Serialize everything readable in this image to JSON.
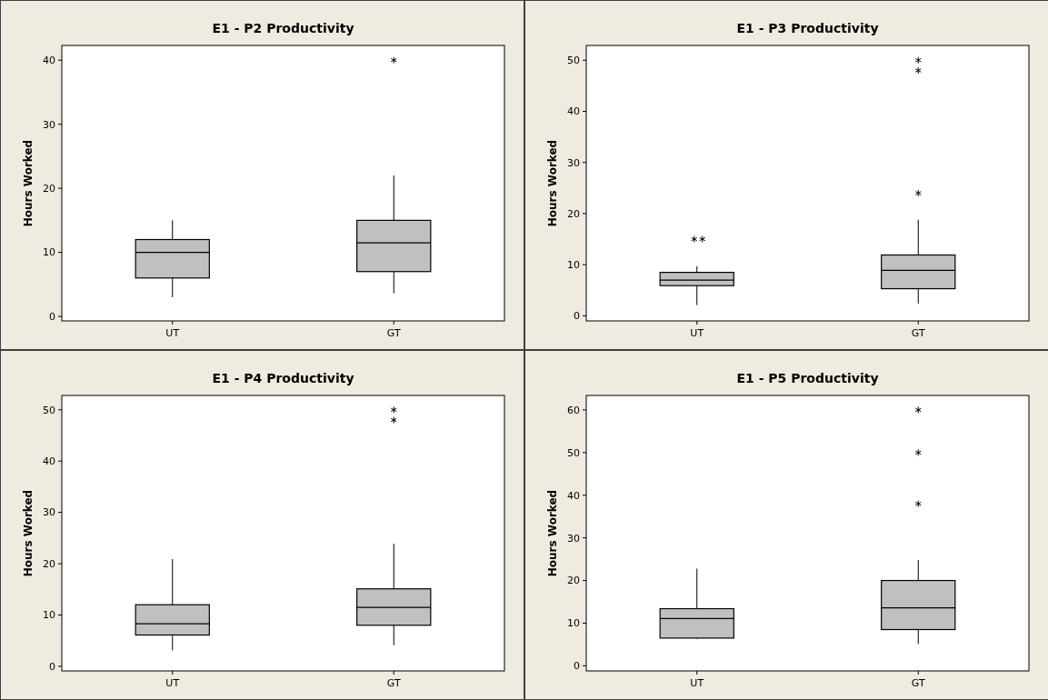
{
  "chart_data": [
    {
      "type": "box",
      "title": "E1 - P2 Productivity",
      "ylabel": "Hours Worked",
      "categories": [
        "UT",
        "GT"
      ],
      "ylim": [
        -0.7,
        42.3
      ],
      "yticks": [
        0,
        10,
        20,
        30,
        40
      ],
      "series": [
        {
          "color": "#c0c0c0",
          "boxes": [
            {
              "low": 3,
              "q1": 6,
              "median": 10,
              "q3": 12,
              "high": 15
            },
            {
              "low": 3.6,
              "q1": 7,
              "median": 11.5,
              "q3": 15,
              "high": 22,
              "outliers": [
                40
              ]
            }
          ]
        }
      ]
    },
    {
      "type": "box",
      "title": "E1 - P3 Productivity",
      "ylabel": "Hours Worked",
      "categories": [
        "UT",
        "GT"
      ],
      "ylim": [
        -1,
        52.9
      ],
      "yticks": [
        0,
        10,
        20,
        30,
        40,
        50
      ],
      "series": [
        {
          "color": "#c0c0c0",
          "boxes": [
            {
              "low": 2.1,
              "q1": 5.9,
              "median": 7,
              "q3": 8.5,
              "high": 9.7,
              "outliers": [
                15,
                15
              ]
            },
            {
              "low": 2.4,
              "q1": 5.3,
              "median": 8.9,
              "q3": 11.9,
              "high": 18.8,
              "outliers": [
                24,
                48,
                50
              ]
            }
          ]
        }
      ]
    },
    {
      "type": "box",
      "title": "E1 - P4 Productivity",
      "ylabel": "Hours Worked",
      "categories": [
        "UT",
        "GT"
      ],
      "ylim": [
        -0.9,
        52.8
      ],
      "yticks": [
        0,
        10,
        20,
        30,
        40,
        50
      ],
      "series": [
        {
          "color": "#c0c0c0",
          "boxes": [
            {
              "low": 3.1,
              "q1": 6.1,
              "median": 8.3,
              "q3": 12,
              "high": 20.9
            },
            {
              "low": 4.1,
              "q1": 8,
              "median": 11.5,
              "q3": 15.1,
              "high": 23.9,
              "outliers": [
                48,
                50
              ]
            }
          ]
        }
      ]
    },
    {
      "type": "box",
      "title": "E1 - P5 Productivity",
      "ylabel": "Hours Worked",
      "categories": [
        "UT",
        "GT"
      ],
      "ylim": [
        -1.2,
        63.4
      ],
      "yticks": [
        0,
        10,
        20,
        30,
        40,
        50,
        60
      ],
      "series": [
        {
          "color": "#c0c0c0",
          "boxes": [
            {
              "low": 6.3,
              "q1": 6.5,
              "median": 11.1,
              "q3": 13.4,
              "high": 22.8
            },
            {
              "low": 5.1,
              "q1": 8.5,
              "median": 13.6,
              "q3": 20,
              "high": 24.8,
              "outliers": [
                38,
                50,
                60
              ]
            }
          ]
        }
      ]
    }
  ]
}
